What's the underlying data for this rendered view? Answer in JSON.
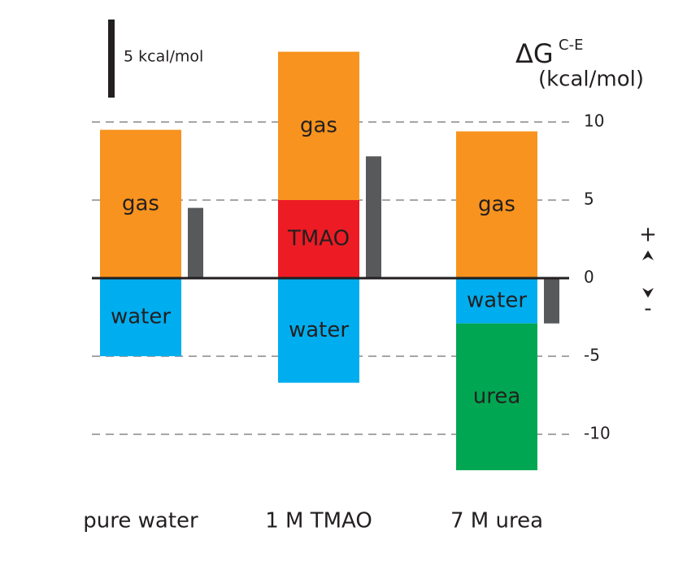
{
  "chart_data": {
    "type": "bar",
    "categories": [
      "pure water",
      "1 M TMAO",
      "7 M urea"
    ],
    "series": [
      {
        "name": "TMAO",
        "color": "#ed1c24",
        "values": [
          null,
          5,
          null
        ]
      },
      {
        "name": "gas",
        "color": "#f7931e",
        "values": [
          9.5,
          9.5,
          9.4
        ]
      },
      {
        "name": "water",
        "color": "#00aeef",
        "values": [
          -5,
          -6.7,
          -2.9
        ]
      },
      {
        "name": "urea",
        "color": "#00a651",
        "values": [
          null,
          null,
          -9.4
        ]
      }
    ],
    "net": {
      "color": "#58595b",
      "values": [
        4.5,
        7.8,
        -2.9
      ]
    },
    "ylim": [
      -12.5,
      15
    ],
    "yticks": [
      10,
      5,
      0,
      -5,
      -10
    ],
    "grid": true,
    "y_label": "ΔG",
    "y_label_superscript": "C-E",
    "y_unit": "(kcal/mol)",
    "scale_bar": {
      "value": 5,
      "label": "5 kcal/mol"
    },
    "direction_labels": [
      "+",
      "-"
    ]
  }
}
